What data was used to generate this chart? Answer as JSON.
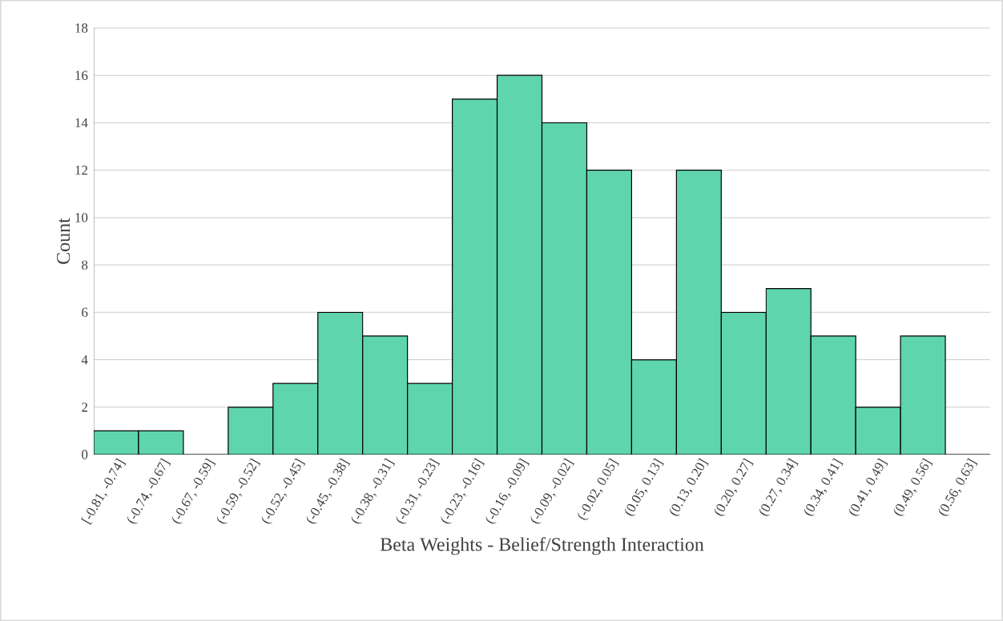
{
  "chart_data": {
    "type": "bar",
    "xlabel": "Beta Weights - Belief/Strength Interaction",
    "ylabel": "Count",
    "categories": [
      "[-0.81, -0.74]",
      "(-0.74, -0.67]",
      "(-0.67, -0.59]",
      "(-0.59, -0.52]",
      "(-0.52, -0.45]",
      "(-0.45, -0.38]",
      "(-0.38, -0.31]",
      "(-0.31, -0.23]",
      "(-0.23, -0.16]",
      "(-0.16, -0.09]",
      "(-0.09, -0.02]",
      "(-0.02, 0.05]",
      "(0.05, 0.13]",
      "(0.13, 0.20]",
      "(0.20, 0.27]",
      "(0.27, 0.34]",
      "(0.34, 0.41]",
      "(0.41, 0.49]",
      "(0.49, 0.56]",
      "(0.56, 0.63]"
    ],
    "values": [
      1,
      1,
      0,
      2,
      3,
      6,
      5,
      3,
      15,
      16,
      14,
      12,
      4,
      12,
      6,
      7,
      5,
      2,
      5,
      0
    ],
    "color": "#5fd5ad",
    "ylim": [
      0,
      18
    ],
    "yticks": [
      0,
      2,
      4,
      6,
      8,
      10,
      12,
      14,
      16,
      18
    ],
    "grid": "y"
  }
}
